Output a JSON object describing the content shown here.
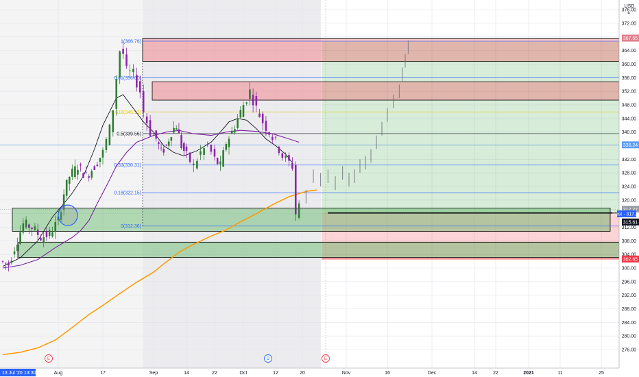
{
  "chart_data": {
    "type": "candlestick",
    "currency": "USD",
    "x_ticks": [
      "Aug",
      "17",
      "Sep",
      "14",
      "22",
      "Oct",
      "12",
      "20",
      "Nov",
      "16",
      "Dec",
      "14",
      "22",
      "2021",
      "11",
      "25"
    ],
    "start_label": "13 Jul '20",
    "start_time": "13:30",
    "y_ticks": [
      "276.00",
      "280.00",
      "284.00",
      "288.00",
      "292.00",
      "296.00",
      "300.00",
      "304.00",
      "308.00",
      "312.00",
      "316.00",
      "320.00",
      "324.00",
      "328.00",
      "332.00",
      "336.00",
      "340.00",
      "344.00",
      "348.00",
      "352.00",
      "356.00",
      "360.00",
      "364.00",
      "368.00",
      "372.00",
      "376.00"
    ],
    "ylim": [
      274,
      378
    ],
    "fib_levels": [
      {
        "label": "1(366.76)",
        "value": 366.76,
        "color": "#2962ff"
      },
      {
        "label": "0.81(356.00)",
        "value": 356.0,
        "color": "#2962ff"
      },
      {
        "label": "0.618(345.93)",
        "value": 345.93,
        "color": "#e6c800"
      },
      {
        "label": "0.5(339.56)",
        "value": 339.56,
        "color": "#131722"
      },
      {
        "label": "0.33(330.31)",
        "value": 330.31,
        "color": "#2962ff"
      },
      {
        "label": "0.18(322.15)",
        "value": 322.15,
        "color": "#2962ff"
      },
      {
        "label": "0(312.36)",
        "value": 312.36,
        "color": "#2962ff"
      }
    ],
    "price_tags": [
      {
        "label": "367.65",
        "value": 367.65,
        "color": "#e37d8a"
      },
      {
        "label": "336.24",
        "value": 336.24,
        "color": "#5b9cf6"
      },
      {
        "label": "317.27",
        "value": 317.27,
        "color": "#9598a1"
      },
      {
        "label": "Post · 317.27",
        "value": 315.95,
        "color": "#2962ff"
      },
      {
        "label": "315.61",
        "value": 313.55,
        "color": "#131722"
      },
      {
        "label": "302.65",
        "value": 302.65,
        "color": "#f23645"
      }
    ],
    "events": [
      {
        "label": "E",
        "color": "#f23645"
      },
      {
        "label": "D",
        "color": "#2962ff"
      },
      {
        "label": "E",
        "color": "#f23645"
      }
    ]
  }
}
